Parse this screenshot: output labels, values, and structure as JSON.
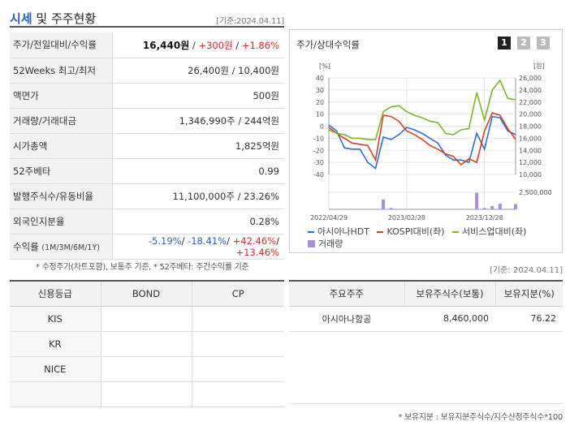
{
  "header": {
    "title_main": "시세",
    "title_rest": " 및 주주현황",
    "date": "[기준:2024.04.11]"
  },
  "info": {
    "price_label": "주가/전일대비/수익률",
    "price_value": "16,440원",
    "price_change": "+300원",
    "price_rate": "+1.86%",
    "w52_label": "52Weeks 최고/최저",
    "w52_value": "26,400원 / 10,400원",
    "par_label": "액면가",
    "par_value": "500원",
    "volume_label": "거래량/거래대금",
    "volume_value": "1,346,990주 / 244억원",
    "mcap_label": "시가총액",
    "mcap_value": "1,825억원",
    "beta_label": "52주베타",
    "beta_value": "0.99",
    "shares_label": "발행주식수/유동비율",
    "shares_value": "11,100,000주 / 23.26%",
    "foreign_label": "외국인지분율",
    "foreign_value": "0.28%",
    "return_label": "수익률",
    "return_label_sub": "(1M/3M/6M/1Y)",
    "return_1m": "-5.19%",
    "return_3m": "-18.41%",
    "return_6m": "+42.46%",
    "return_1y": "+13.46%"
  },
  "footnote_left": "* 수정주가(차트포함), 보통주 기준, * 52주베타: 주간수익률 기준",
  "chart_panel": {
    "title": "주가/상대수익률",
    "pages": [
      "1",
      "2",
      "3"
    ],
    "active_page": "1"
  },
  "chart_data": {
    "type": "line",
    "left_unit": "[%]",
    "right_unit": "[원]",
    "left_ticks": [
      "40",
      "30",
      "20",
      "10",
      "0",
      "-10",
      "-20",
      "-30",
      "-40"
    ],
    "right_ticks": [
      "26,000",
      "24,000",
      "22,000",
      "20,000",
      "18,000",
      "16,000",
      "14,000",
      "12,000",
      "10,000"
    ],
    "volume_tick": "2,500,000",
    "ylim_left": [
      -40,
      40
    ],
    "ylim_right": [
      10000,
      26000
    ],
    "x_labels": [
      "2022/04/29",
      "2023/02/28",
      "2023/12/28"
    ],
    "x": [
      0,
      1,
      2,
      3,
      4,
      5,
      6,
      7,
      8,
      9,
      10,
      11,
      12,
      13,
      14,
      15,
      16,
      17,
      18,
      19,
      20,
      21,
      22,
      23,
      24
    ],
    "series": [
      {
        "name": "아시아나HDT",
        "color": "#2c6fd1",
        "values": [
          1,
          -4,
          -18,
          -19,
          -19,
          -30,
          -35,
          -9,
          -11,
          -7,
          -1,
          -3,
          -6,
          -10,
          -14,
          -24,
          -28,
          -28,
          -30,
          -6,
          -19,
          8,
          7,
          -4,
          -7
        ]
      },
      {
        "name": "KOSPI대비(좌)",
        "color": "#d44020",
        "values": [
          -1,
          -6,
          -10,
          -14,
          -15,
          -16,
          -28,
          9,
          8,
          4,
          -4,
          -7,
          -11,
          -16,
          -19,
          -23,
          -25,
          -32,
          -27,
          -30,
          -4,
          11,
          9,
          -2,
          -11
        ]
      },
      {
        "name": "서비스업대비(좌)",
        "color": "#7ab52c",
        "values": [
          -3,
          -6,
          -7,
          -10,
          -10,
          -11,
          -11,
          12,
          16,
          17,
          12,
          9,
          7,
          4,
          3,
          -6,
          -7,
          -3,
          -2,
          28,
          5,
          30,
          38,
          23,
          22
        ]
      }
    ],
    "volume": {
      "name": "거래량",
      "color": "#a98de0",
      "values": [
        0,
        0,
        0,
        0,
        0,
        0,
        0,
        2100000,
        300000,
        0,
        0,
        0,
        0,
        0,
        0,
        0,
        0,
        0,
        0,
        3500000,
        300000,
        700000,
        1200000,
        0,
        1100000
      ],
      "ylim": [
        0,
        3600000
      ]
    }
  },
  "date_right": "[기준: 2024.04.11]",
  "credit": {
    "headers": [
      "신용등급",
      "BOND",
      "CP"
    ],
    "rows": [
      [
        "KIS",
        "",
        ""
      ],
      [
        "KR",
        "",
        ""
      ],
      [
        "NICE",
        "",
        ""
      ],
      [
        "",
        "",
        ""
      ]
    ]
  },
  "holders": {
    "headers": [
      "주요주주",
      "보유주식수(보통)",
      "보유지분(%)"
    ],
    "rows": [
      [
        "아시아나항공",
        "8,460,000",
        "76.22"
      ]
    ]
  },
  "footnote_right": "* 보유지분 : 보유지분주식수/지수산정주식수*100"
}
